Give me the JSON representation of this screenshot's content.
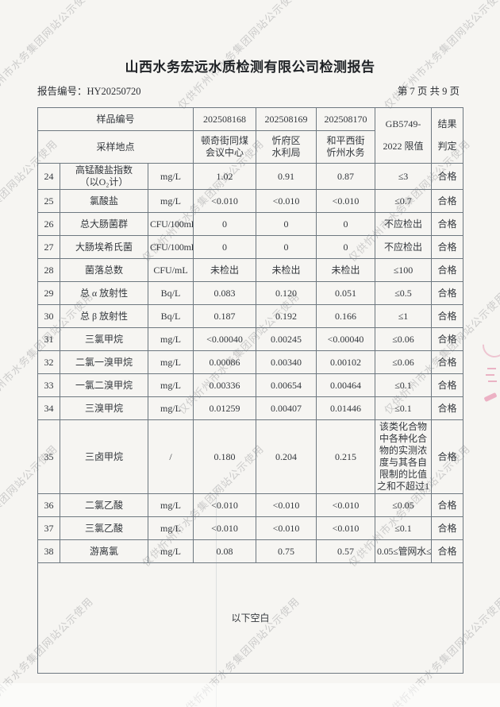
{
  "watermark": {
    "text": "仅供忻州市水务集团网站公示使用"
  },
  "header": {
    "title": "山西水务宏远水质检测有限公司检测报告",
    "report_no": "报告编号：HY20250720",
    "page_info": "第 7 页 共 9 页"
  },
  "table": {
    "head": {
      "sample_no_label": "样品编号",
      "sample_site_label": "采样地点",
      "sample_ids": [
        "202508168",
        "202508169",
        "202508170"
      ],
      "sample_sites": [
        "顿奇街同煤\n会议中心",
        "忻府区\n水利局",
        "和平西街\n忻州水务"
      ],
      "limit_line1": "GB5749-",
      "limit_line2": "2022 限值",
      "result_line1": "结果",
      "result_line2": "判定"
    },
    "rows": [
      {
        "no": "24",
        "name": "高锰酸盐指数\n（以O₂计）",
        "unit": "mg/L",
        "values": [
          "1.02",
          "0.91",
          "0.87"
        ],
        "limit": "≤3",
        "result": "合格"
      },
      {
        "no": "25",
        "name": "氯酸盐",
        "unit": "mg/L",
        "values": [
          "<0.010",
          "<0.010",
          "<0.010"
        ],
        "limit": "≤0.7",
        "result": "合格"
      },
      {
        "no": "26",
        "name": "总大肠菌群",
        "unit": "CFU/100mL",
        "values": [
          "0",
          "0",
          "0"
        ],
        "limit": "不应检出",
        "result": "合格"
      },
      {
        "no": "27",
        "name": "大肠埃希氏菌",
        "unit": "CFU/100mL",
        "values": [
          "0",
          "0",
          "0"
        ],
        "limit": "不应检出",
        "result": "合格"
      },
      {
        "no": "28",
        "name": "菌落总数",
        "unit": "CFU/mL",
        "values": [
          "未检出",
          "未检出",
          "未检出"
        ],
        "limit": "≤100",
        "result": "合格"
      },
      {
        "no": "29",
        "name": "总 α 放射性",
        "unit": "Bq/L",
        "values": [
          "0.083",
          "0.120",
          "0.051"
        ],
        "limit": "≤0.5",
        "result": "合格"
      },
      {
        "no": "30",
        "name": "总 β 放射性",
        "unit": "Bq/L",
        "values": [
          "0.187",
          "0.192",
          "0.166"
        ],
        "limit": "≤1",
        "result": "合格"
      },
      {
        "no": "31",
        "name": "三氯甲烷",
        "unit": "mg/L",
        "values": [
          "<0.00040",
          "0.00245",
          "<0.00040"
        ],
        "limit": "≤0.06",
        "result": "合格"
      },
      {
        "no": "32",
        "name": "二氯一溴甲烷",
        "unit": "mg/L",
        "values": [
          "0.00086",
          "0.00340",
          "0.00102"
        ],
        "limit": "≤0.06",
        "result": "合格"
      },
      {
        "no": "33",
        "name": "一氯二溴甲烷",
        "unit": "mg/L",
        "values": [
          "0.00336",
          "0.00654",
          "0.00464"
        ],
        "limit": "≤0.1",
        "result": "合格"
      },
      {
        "no": "34",
        "name": "三溴甲烷",
        "unit": "mg/L",
        "values": [
          "0.01259",
          "0.00407",
          "0.01446"
        ],
        "limit": "≤0.1",
        "result": "合格"
      },
      {
        "no": "35",
        "name": "三卤甲烷",
        "unit": "/",
        "values": [
          "0.180",
          "0.204",
          "0.215"
        ],
        "limit": "该类化合物中各种化合物的实测浓度与其各自限制的比值之和不超过1",
        "result": "合格"
      },
      {
        "no": "36",
        "name": "二氯乙酸",
        "unit": "mg/L",
        "values": [
          "<0.010",
          "<0.010",
          "<0.010"
        ],
        "limit": "≤0.05",
        "result": "合格"
      },
      {
        "no": "37",
        "name": "三氯乙酸",
        "unit": "mg/L",
        "values": [
          "<0.010",
          "<0.010",
          "<0.010"
        ],
        "limit": "≤0.1",
        "result": "合格"
      },
      {
        "no": "38",
        "name": "游离氯",
        "unit": "mg/L",
        "values": [
          "0.08",
          "0.75",
          "0.57"
        ],
        "limit": "0.05≤管网水≤2",
        "result": "合格"
      }
    ],
    "footer_note": "以下空白"
  }
}
